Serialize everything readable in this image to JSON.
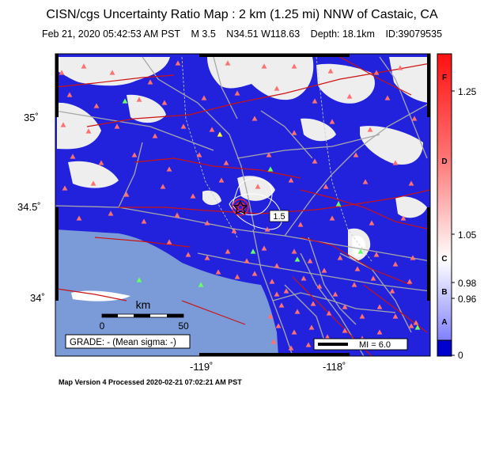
{
  "title": "CISN/cgs Uncertainty Ratio Map : 2 km (1.25 mi) NNW of Castaic, CA",
  "event": {
    "datetime": "Feb 21, 2020 05:42:53 AM PST",
    "magnitude": "M 3.5",
    "location": "N34.51 W118.63",
    "depth": "Depth: 18.1km",
    "id": "ID:39079535"
  },
  "axes": {
    "lat_ticks": [
      "35˚",
      "34.5˚",
      "34˚"
    ],
    "lon_ticks": [
      "-119˚",
      "-118˚"
    ]
  },
  "contour_label": "1.5",
  "scalebar": {
    "unit": "km",
    "start": "0",
    "end": "50"
  },
  "grade_box": "GRADE: - (Mean sigma: -)",
  "mi_legend": "MI = 6.0",
  "colorbar": {
    "letters": [
      "F",
      "D",
      "C",
      "B",
      "A"
    ],
    "values": [
      "1.25",
      "1.05",
      "0.98",
      "0.96",
      "0"
    ]
  },
  "footer": "Map Version 4 Processed 2020-02-21 07:02:21 AM PST",
  "colors": {
    "uncertainty_blue": "#2222dd",
    "ocean": "#7a9bd8",
    "station_red": "#ff7070",
    "station_green": "#66ff66",
    "station_yellow": "#ffff33",
    "fault": "#cc1111",
    "road": "#a7a7a7"
  }
}
